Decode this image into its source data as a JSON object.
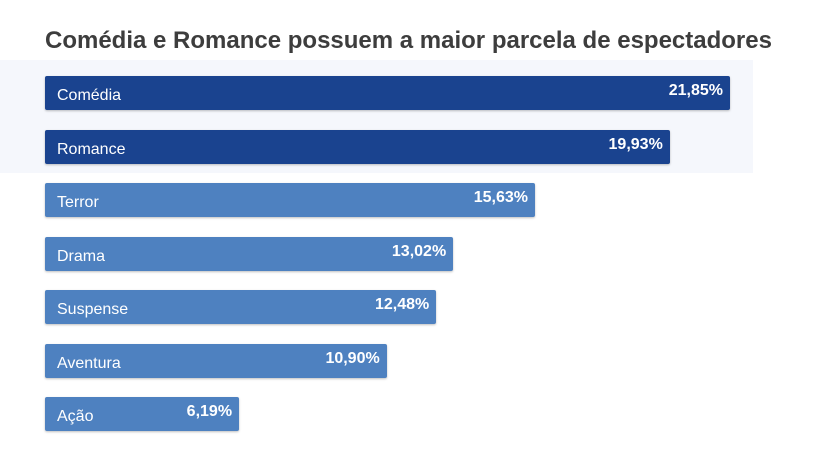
{
  "chart_data": {
    "type": "bar",
    "orientation": "horizontal",
    "title": "Comédia e Romance possuem a maior parcela de espectadores",
    "categories": [
      "Comédia",
      "Romance",
      "Terror",
      "Drama",
      "Suspense",
      "Aventura",
      "Ação"
    ],
    "values": [
      21.85,
      19.93,
      15.63,
      13.02,
      12.48,
      10.9,
      6.19
    ],
    "value_labels": [
      "21,85%",
      "19,93%",
      "15,63%",
      "13,02%",
      "12,48%",
      "10,90%",
      "6,19%"
    ],
    "unit": "%",
    "highlighted_categories": [
      "Comédia",
      "Romance"
    ],
    "colors": {
      "highlight": "#1a438f",
      "default": "#4e81c0"
    },
    "xlabel": "",
    "ylabel": "",
    "grid": false,
    "legend": "none"
  }
}
